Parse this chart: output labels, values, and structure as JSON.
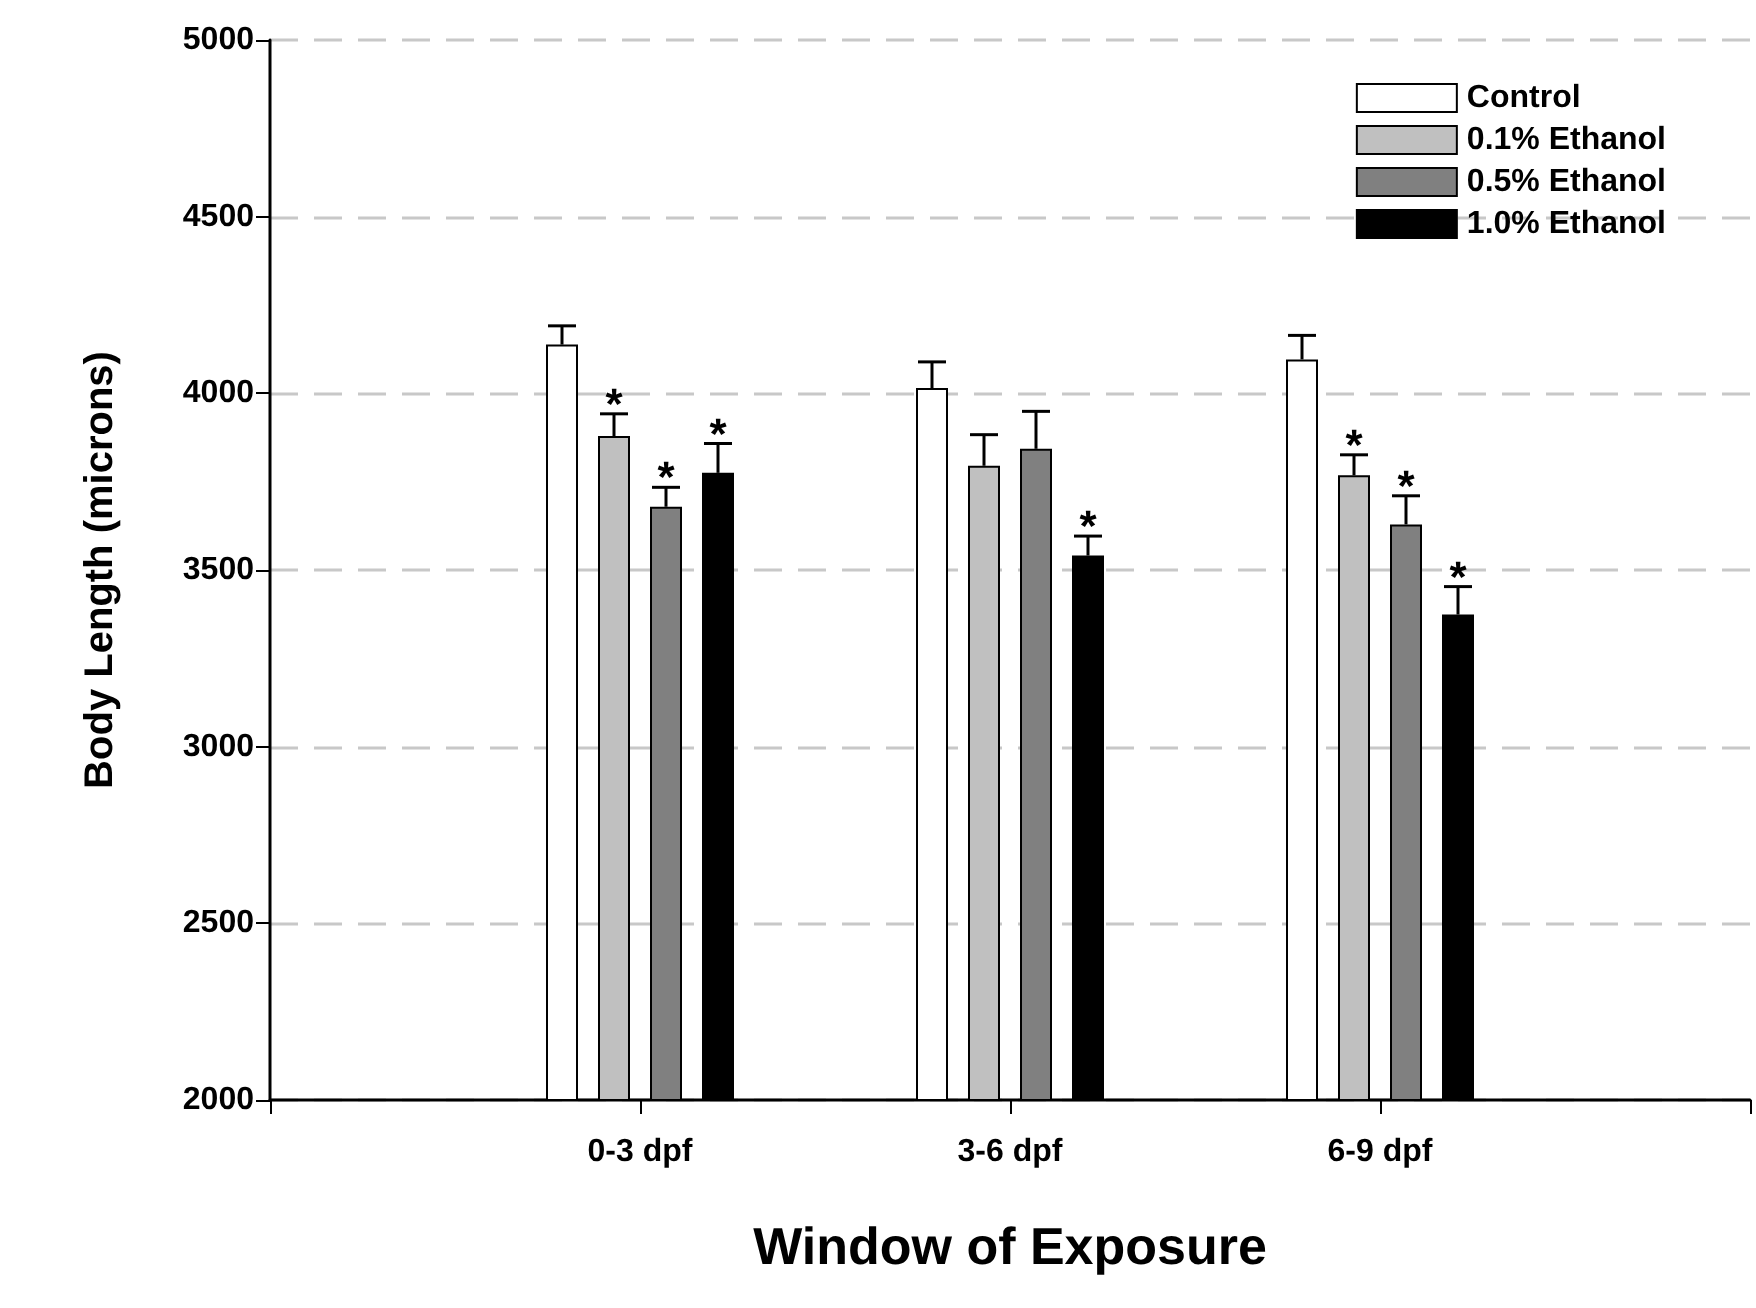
{
  "chart_data": {
    "type": "bar",
    "xlabel": "Window of Exposure",
    "ylabel": "Body Length (microns)",
    "categories": [
      null,
      "0-3 dpf",
      "3-6 dpf",
      "6-9 dpf",
      null
    ],
    "series": [
      {
        "name": "Control",
        "color": "#ffffff",
        "values": [
          null,
          4138,
          4015,
          4096,
          null
        ],
        "errors": [
          null,
          [
            4138,
            4191
          ],
          [
            4015,
            4089
          ],
          [
            4096,
            4164
          ],
          null
        ],
        "value_labels": [
          null,
          null,
          null,
          null,
          null
        ]
      },
      {
        "name": "0.1% Ethanol",
        "color": "#c0c0c0",
        "values": [
          null,
          3879,
          3795,
          3768,
          null
        ],
        "errors": [
          null,
          [
            3879,
            3942
          ],
          [
            3795,
            3883
          ],
          [
            3768,
            3826
          ],
          null
        ],
        "value_labels": [
          null,
          "*",
          null,
          "*",
          null
        ]
      },
      {
        "name": "0.5% Ethanol",
        "color": "#808080",
        "values": [
          null,
          3679,
          3843,
          3629,
          null
        ],
        "errors": [
          null,
          [
            3679,
            3734
          ],
          [
            3843,
            3949
          ],
          [
            3629,
            3710
          ],
          null
        ],
        "value_labels": [
          null,
          "*",
          null,
          "*",
          null
        ]
      },
      {
        "name": "1.0% Ethanol",
        "color": "#000000",
        "values": [
          null,
          3775,
          3541,
          3374,
          null
        ],
        "errors": [
          null,
          [
            3775,
            3858
          ],
          [
            3541,
            3596
          ],
          [
            3374,
            3453
          ],
          null
        ],
        "value_labels": [
          null,
          "*",
          "*",
          "*",
          null
        ]
      }
    ],
    "ylim": [
      2000,
      5000
    ],
    "yticks": [
      2000,
      2500,
      3000,
      3500,
      4000,
      4500,
      5000
    ],
    "grid": "y",
    "legend": "top right"
  }
}
